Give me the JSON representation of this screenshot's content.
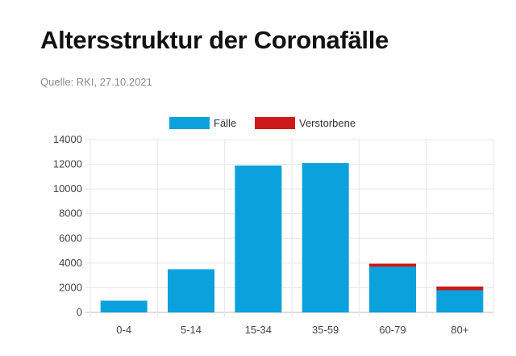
{
  "header": {
    "title": "Altersstruktur der Coronafälle",
    "source": "Quelle: RKI, 27.10.2021"
  },
  "colors": {
    "faelle": "#0ba1dc",
    "verstorbene": "#cc1a1a",
    "grid": "#e6e6e6",
    "axis": "#bbbbbb"
  },
  "chart_data": {
    "type": "bar",
    "stacked": true,
    "categories": [
      "0-4",
      "5-14",
      "15-34",
      "35-59",
      "60-79",
      "80+"
    ],
    "series": [
      {
        "name": "Fälle",
        "values": [
          950,
          3500,
          11900,
          12100,
          3700,
          1800
        ]
      },
      {
        "name": "Verstorbene",
        "values": [
          0,
          0,
          0,
          0,
          250,
          300
        ]
      }
    ],
    "ylim": [
      0,
      14000
    ],
    "yticks": [
      0,
      2000,
      4000,
      6000,
      8000,
      10000,
      12000,
      14000
    ],
    "legend_position": "top-center",
    "grid": true
  }
}
